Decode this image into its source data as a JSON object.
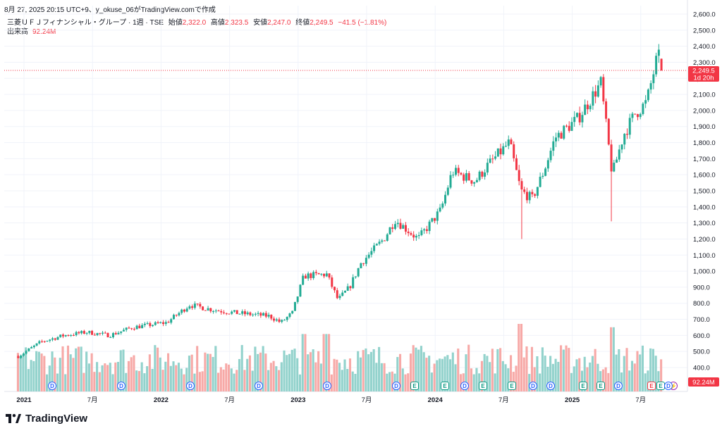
{
  "caption": "8月 27, 2025 20:15 UTC+9、y_okuse_06がTradingView.comで作成",
  "legend": {
    "symbol": "三菱ＵＦＪフィナンシャル・グループ · 1週 · TSE",
    "open_label": "始値",
    "open": "2,322.0",
    "high_label": "高値",
    "high": "2,323.5",
    "low_label": "安値",
    "low": "2,247.0",
    "close_label": "終値",
    "close": "2,249.5",
    "change": "−41.5 (−1.81%)",
    "volume_label": "出来高",
    "volume": "92.24M"
  },
  "price_axis": {
    "ticks": [
      "2,600.0",
      "2,500.0",
      "2,400.0",
      "2,300.0",
      "2,200.0",
      "2,100.0",
      "2,000.0",
      "1,900.0",
      "1,800.0",
      "1,700.0",
      "1,600.0",
      "1,500.0",
      "1,400.0",
      "1,300.0",
      "1,200.0",
      "1,100.0",
      "1,000.0",
      "900.0",
      "800.0",
      "700.0",
      "600.0",
      "500.0",
      "400.0"
    ],
    "last_price_label": "2,249.5",
    "countdown_label": "1d 20h",
    "volume_badge": "92.24M"
  },
  "time_axis": {
    "labels": [
      {
        "t": "2021",
        "bold": true
      },
      {
        "t": "7月",
        "bold": false
      },
      {
        "t": "2022",
        "bold": true
      },
      {
        "t": "7月",
        "bold": false
      },
      {
        "t": "2023",
        "bold": true
      },
      {
        "t": "7月",
        "bold": false
      },
      {
        "t": "2024",
        "bold": true
      },
      {
        "t": "7月",
        "bold": false
      },
      {
        "t": "2025",
        "bold": true
      },
      {
        "t": "7月",
        "bold": false
      }
    ]
  },
  "events": [
    {
      "t": "D",
      "kind": "dividend"
    },
    {
      "t": "D",
      "kind": "dividend"
    },
    {
      "t": "D",
      "kind": "dividend"
    },
    {
      "t": "D",
      "kind": "dividend"
    },
    {
      "t": "D",
      "kind": "dividend"
    },
    {
      "t": "D",
      "kind": "dividend"
    },
    {
      "t": "E",
      "kind": "earnings"
    },
    {
      "t": "E",
      "kind": "earnings"
    },
    {
      "t": "D",
      "kind": "dividend"
    },
    {
      "t": "E",
      "kind": "earnings"
    },
    {
      "t": "E",
      "kind": "earnings"
    },
    {
      "t": "D",
      "kind": "dividend"
    },
    {
      "t": "D",
      "kind": "dividend"
    },
    {
      "t": "E",
      "kind": "earnings"
    },
    {
      "t": "E",
      "kind": "earnings"
    },
    {
      "t": "D",
      "kind": "dividend"
    },
    {
      "t": "E",
      "kind": "earnings-miss"
    },
    {
      "t": "E",
      "kind": "earnings"
    },
    {
      "t": "⚡",
      "kind": "split"
    },
    {
      "t": "D",
      "kind": "dividend"
    }
  ],
  "footer": {
    "brand": "TradingView"
  },
  "colors": {
    "up": "#22ab94",
    "down": "#f23645",
    "vol_up": "#92d2cc",
    "vol_down": "#f7a9a7",
    "grid": "#f0f3fa",
    "dividend": "#2962ff",
    "earnings": "#089981",
    "earnings_miss": "#f23645",
    "split": "#9c27b0"
  },
  "chart_data": {
    "type": "candlestick",
    "interval": "1W",
    "ylim": [
      350,
      2620
    ],
    "anchors": [
      {
        "date": "2020-12",
        "price": 470
      },
      {
        "date": "2021-02",
        "price": 560
      },
      {
        "date": "2021-04",
        "price": 600
      },
      {
        "date": "2021-06",
        "price": 620
      },
      {
        "date": "2021-08",
        "price": 600
      },
      {
        "date": "2021-10",
        "price": 650
      },
      {
        "date": "2022-01",
        "price": 680
      },
      {
        "date": "2022-03",
        "price": 790
      },
      {
        "date": "2022-05",
        "price": 760
      },
      {
        "date": "2022-07",
        "price": 740
      },
      {
        "date": "2022-10",
        "price": 720
      },
      {
        "date": "2022-11",
        "price": 680
      },
      {
        "date": "2022-12",
        "price": 740
      },
      {
        "date": "2023-01",
        "price": 970
      },
      {
        "date": "2023-03",
        "price": 980
      },
      {
        "date": "2023-04",
        "price": 820
      },
      {
        "date": "2023-05",
        "price": 900
      },
      {
        "date": "2023-06",
        "price": 1050
      },
      {
        "date": "2023-08",
        "price": 1200
      },
      {
        "date": "2023-09",
        "price": 1320
      },
      {
        "date": "2023-10",
        "price": 1260
      },
      {
        "date": "2023-11",
        "price": 1200
      },
      {
        "date": "2024-01",
        "price": 1380
      },
      {
        "date": "2024-02",
        "price": 1620
      },
      {
        "date": "2024-04",
        "price": 1560
      },
      {
        "date": "2024-05",
        "price": 1650
      },
      {
        "date": "2024-07",
        "price": 1800
      },
      {
        "date": "2024-08",
        "price": 1500
      },
      {
        "date": "2024-09",
        "price": 1450
      },
      {
        "date": "2024-10",
        "price": 1620
      },
      {
        "date": "2024-11",
        "price": 1830
      },
      {
        "date": "2025-01",
        "price": 1950
      },
      {
        "date": "2025-03",
        "price": 2170
      },
      {
        "date": "2025-04",
        "price": 1600
      },
      {
        "date": "2025-05",
        "price": 1850
      },
      {
        "date": "2025-06",
        "price": 1980
      },
      {
        "date": "2025-07",
        "price": 2050
      },
      {
        "date": "2025-08",
        "price": 2350
      },
      {
        "date": "2025-08-27",
        "price": 2249.5
      }
    ],
    "last": {
      "open": 2322.0,
      "high": 2323.5,
      "low": 2247.0,
      "close": 2249.5
    },
    "volume_last": "92.24M"
  }
}
